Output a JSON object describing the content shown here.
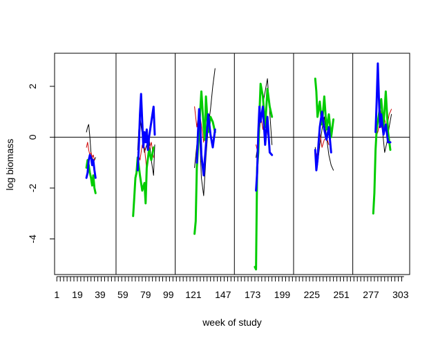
{
  "chart_data": {
    "type": "line",
    "title": "",
    "xlabel": "week of study",
    "ylabel": "log biomass",
    "xlim": [
      -1,
      311
    ],
    "ylim": [
      -5.4,
      3.3
    ],
    "x_tick_labels": [
      1,
      19,
      39,
      59,
      79,
      99,
      121,
      147,
      173,
      199,
      225,
      251,
      277,
      303
    ],
    "y_tick_labels": [
      2,
      0,
      -2,
      -4
    ],
    "reference_line_y": 0,
    "year_dividers_x": [
      53,
      105,
      157,
      209,
      261
    ],
    "grid": false,
    "legend": "none",
    "colors": {
      "black": "#000000",
      "red": "#cc0000",
      "green": "#00cc00",
      "blue": "#0000ff"
    },
    "series": [
      {
        "color_key": "black",
        "segments": [
          {
            "x": [
              27,
              28,
              29,
              30,
              31,
              32,
              33,
              34,
              35
            ],
            "y": [
              0.2,
              0.4,
              0.5,
              0.0,
              -0.6,
              -0.8,
              -1.0,
              -0.9,
              -0.8
            ]
          },
          {
            "x": [
              72,
              73,
              74,
              76,
              78,
              80,
              82,
              84,
              86,
              87
            ],
            "y": [
              -0.5,
              0.3,
              0.8,
              0.1,
              -0.6,
              -0.3,
              0.0,
              -0.9,
              -1.5,
              -0.3
            ]
          },
          {
            "x": [
              122,
              124,
              126,
              128,
              130,
              132,
              134,
              136,
              138,
              140
            ],
            "y": [
              -1.2,
              -0.3,
              0.6,
              -1.6,
              -2.3,
              -0.8,
              0.4,
              1.1,
              2.0,
              2.7
            ]
          },
          {
            "x": [
              176,
              178,
              180,
              182,
              184,
              186,
              188,
              190
            ],
            "y": [
              -0.8,
              -0.2,
              0.7,
              1.3,
              1.8,
              2.3,
              1.0,
              -0.3
            ]
          },
          {
            "x": [
              228,
              230,
              232,
              234,
              236,
              238,
              240,
              242,
              244
            ],
            "y": [
              -0.4,
              -1.1,
              -0.3,
              0.3,
              0.8,
              0.0,
              -0.7,
              -1.1,
              -1.3
            ]
          },
          {
            "x": [
              281,
              283,
              285,
              287,
              289,
              291,
              293,
              295
            ],
            "y": [
              0.2,
              0.6,
              1.2,
              0.3,
              -0.6,
              -0.2,
              0.4,
              0.9
            ]
          }
        ]
      },
      {
        "color_key": "red",
        "segments": [
          {
            "x": [
              27,
              28,
              29,
              30,
              31,
              32,
              33,
              34
            ],
            "y": [
              -0.4,
              -0.2,
              -0.5,
              -0.7,
              -0.6,
              -0.8,
              -0.7,
              -0.9
            ]
          },
          {
            "x": [
              72,
              74,
              76,
              78,
              80,
              82,
              84,
              86
            ],
            "y": [
              -0.6,
              -0.9,
              -0.3,
              -0.4,
              -1.3,
              -0.5,
              -0.2,
              -0.8
            ]
          },
          {
            "x": [
              122,
              124,
              126,
              128,
              130,
              132
            ],
            "y": [
              1.2,
              0.4,
              1.0,
              0.5,
              -0.2,
              0.6
            ]
          },
          {
            "x": [
              176,
              178,
              180,
              182,
              184,
              186,
              188
            ],
            "y": [
              -0.3,
              -0.7,
              0.9,
              0.3,
              0.8,
              0.2,
              -0.4
            ]
          },
          {
            "x": [
              228,
              230,
              232,
              234,
              236,
              238,
              240
            ],
            "y": [
              -0.5,
              -0.8,
              0.2,
              -0.4,
              -0.1,
              0.0,
              -0.3
            ]
          },
          {
            "x": [
              281,
              283,
              285,
              287,
              289,
              291,
              293,
              295
            ],
            "y": [
              0.0,
              0.2,
              0.6,
              0.3,
              0.7,
              0.4,
              0.9,
              1.1
            ]
          }
        ]
      },
      {
        "color_key": "green",
        "segments": [
          {
            "x": [
              27,
              28,
              29,
              30,
              31,
              32,
              33,
              34,
              35
            ],
            "y": [
              -1.2,
              -0.9,
              -1.1,
              -1.4,
              -1.6,
              -1.9,
              -1.5,
              -2.0,
              -2.2
            ]
          },
          {
            "x": [
              68,
              69,
              70,
              71,
              72,
              74,
              76,
              78,
              79,
              80,
              82,
              84,
              86
            ],
            "y": [
              -3.1,
              -2.4,
              -1.6,
              -1.4,
              -0.8,
              -1.5,
              -2.1,
              -1.8,
              -2.6,
              -1.2,
              -0.5,
              -0.9,
              -0.4
            ]
          },
          {
            "x": [
              122,
              123,
              124,
              126,
              128,
              130,
              131,
              132,
              134,
              136,
              138,
              140
            ],
            "y": [
              -3.8,
              -3.3,
              -1.2,
              0.3,
              1.8,
              0.4,
              -0.1,
              1.6,
              0.2,
              0.8,
              0.6,
              0.2
            ]
          },
          {
            "x": [
              175,
              176,
              177,
              178,
              179,
              180,
              182,
              184,
              186,
              188,
              190
            ],
            "y": [
              -5.1,
              -5.2,
              -1.2,
              -0.6,
              0.9,
              2.1,
              1.6,
              0.4,
              1.9,
              1.2,
              0.8
            ]
          },
          {
            "x": [
              228,
              229,
              230,
              232,
              234,
              236,
              238,
              240,
              242,
              244
            ],
            "y": [
              2.3,
              1.8,
              0.8,
              1.4,
              0.5,
              1.6,
              0.3,
              0.9,
              0.0,
              0.7
            ]
          },
          {
            "x": [
              279,
              280,
              281,
              282,
              284,
              286,
              288,
              290,
              292,
              294
            ],
            "y": [
              -3.0,
              -2.2,
              -0.5,
              0.3,
              0.9,
              1.5,
              0.4,
              1.8,
              0.2,
              -0.5
            ]
          }
        ]
      },
      {
        "color_key": "blue",
        "segments": [
          {
            "x": [
              27,
              28,
              29,
              30,
              31,
              32,
              33,
              34,
              35
            ],
            "y": [
              -1.6,
              -1.4,
              -0.9,
              -0.7,
              -0.8,
              -1.1,
              -0.9,
              -1.3,
              -1.6
            ]
          },
          {
            "x": [
              72,
              73,
              74,
              75,
              76,
              77,
              78,
              79,
              80,
              81,
              82,
              84,
              86,
              87
            ],
            "y": [
              -1.3,
              -0.4,
              0.9,
              1.7,
              0.6,
              -0.4,
              0.2,
              -0.2,
              0.3,
              -0.5,
              0.0,
              0.6,
              1.2,
              0.1
            ]
          },
          {
            "x": [
              124,
              125,
              126,
              127,
              128,
              130,
              132,
              134,
              136,
              138,
              140
            ],
            "y": [
              -1.0,
              0.2,
              1.1,
              0.4,
              -0.7,
              -1.5,
              -0.3,
              0.9,
              0.1,
              -0.4,
              0.3
            ]
          },
          {
            "x": [
              176,
              177,
              178,
              179,
              180,
              182,
              184,
              186,
              188,
              190
            ],
            "y": [
              -2.1,
              -1.4,
              0.2,
              1.2,
              0.6,
              1.2,
              -0.3,
              0.8,
              -0.6,
              -0.7
            ]
          },
          {
            "x": [
              228,
              229,
              230,
              231,
              232,
              234,
              236,
              238,
              240,
              242
            ],
            "y": [
              -0.5,
              -1.3,
              -0.9,
              -0.2,
              0.4,
              1.0,
              0.3,
              -0.1,
              0.4,
              -0.6
            ]
          },
          {
            "x": [
              281,
              282,
              283,
              284,
              285,
              286,
              288,
              290,
              292,
              294
            ],
            "y": [
              0.2,
              1.4,
              2.9,
              1.5,
              0.4,
              0.9,
              0.1,
              0.5,
              -0.2,
              -0.2
            ]
          }
        ]
      }
    ]
  }
}
